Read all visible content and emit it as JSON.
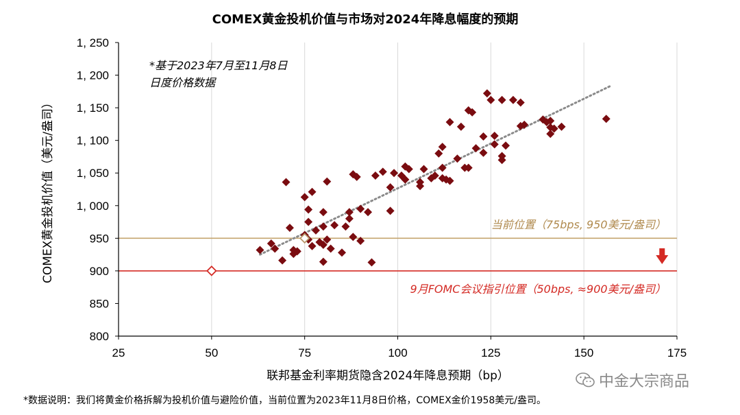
{
  "chart_data": {
    "type": "scatter",
    "title": "COMEX黄金投机价值与市场对2024年降息幅度的预期",
    "xlabel": "联邦基金利率期货隐含2024年降息预期（bp）",
    "ylabel": "COMEX黄金投机价值（美元/盎司）",
    "xlim": [
      25,
      175
    ],
    "ylim": [
      800,
      1250
    ],
    "x_ticks": [
      25,
      50,
      75,
      100,
      125,
      150,
      175
    ],
    "y_ticks": [
      800,
      850,
      900,
      950,
      1000,
      1050,
      1100,
      1150,
      1200,
      1250
    ],
    "y_tick_labels": [
      "800",
      "850",
      "900",
      "950",
      "1, 000",
      "1, 050",
      "1, 100",
      "1, 150",
      "1, 200",
      "1, 250"
    ],
    "grid": "vertical",
    "note_line1": "*基于2023年7月至11月8日",
    "note_line2": "日度价格数据",
    "series_color": "#7a0c10",
    "points": [
      [
        63,
        932
      ],
      [
        66,
        942
      ],
      [
        67,
        934
      ],
      [
        69,
        916
      ],
      [
        70,
        1036
      ],
      [
        71,
        966
      ],
      [
        72,
        926
      ],
      [
        72,
        932
      ],
      [
        73,
        930
      ],
      [
        75,
        1013
      ],
      [
        75,
        955
      ],
      [
        76,
        975
      ],
      [
        76,
        948
      ],
      [
        76,
        994
      ],
      [
        77,
        938
      ],
      [
        77,
        1021
      ],
      [
        78,
        962
      ],
      [
        79,
        944
      ],
      [
        80,
        990
      ],
      [
        80,
        968
      ],
      [
        80,
        940
      ],
      [
        80,
        914
      ],
      [
        81,
        948
      ],
      [
        81,
        1037
      ],
      [
        82,
        934
      ],
      [
        83,
        970
      ],
      [
        85,
        928
      ],
      [
        86,
        968
      ],
      [
        87,
        990
      ],
      [
        87,
        980
      ],
      [
        88,
        1048
      ],
      [
        88,
        952
      ],
      [
        89,
        1044
      ],
      [
        90,
        995
      ],
      [
        90,
        946
      ],
      [
        92,
        990
      ],
      [
        93,
        913
      ],
      [
        94,
        1046
      ],
      [
        96,
        1052
      ],
      [
        98,
        1028
      ],
      [
        98,
        992
      ],
      [
        99,
        1050
      ],
      [
        101,
        1046
      ],
      [
        102,
        1040
      ],
      [
        102,
        1060
      ],
      [
        103,
        1056
      ],
      [
        106,
        1030
      ],
      [
        106,
        1036
      ],
      [
        107,
        1056
      ],
      [
        109,
        1042
      ],
      [
        110,
        1046
      ],
      [
        111,
        1080
      ],
      [
        112,
        1090
      ],
      [
        112,
        1058
      ],
      [
        112,
        1042
      ],
      [
        113,
        1040
      ],
      [
        114,
        1128
      ],
      [
        114,
        1038
      ],
      [
        116,
        1072
      ],
      [
        117,
        1121
      ],
      [
        118,
        1058
      ],
      [
        119,
        1146
      ],
      [
        119,
        1058
      ],
      [
        120,
        1143
      ],
      [
        121,
        1088
      ],
      [
        123,
        1081
      ],
      [
        123,
        1106
      ],
      [
        124,
        1172
      ],
      [
        125,
        1162
      ],
      [
        126,
        1107
      ],
      [
        126,
        1094
      ],
      [
        128,
        1162
      ],
      [
        128,
        1076
      ],
      [
        128,
        1070
      ],
      [
        129,
        1092
      ],
      [
        131,
        1162
      ],
      [
        133,
        1158
      ],
      [
        133,
        1122
      ],
      [
        134,
        1124
      ],
      [
        139,
        1132
      ],
      [
        140,
        1128
      ],
      [
        141,
        1120
      ],
      [
        141,
        1130
      ],
      [
        141,
        1110
      ],
      [
        142,
        1118
      ],
      [
        144,
        1121
      ],
      [
        156,
        1133
      ]
    ],
    "trend_line": {
      "x": [
        63,
        157
      ],
      "y": [
        925,
        1183
      ],
      "style": "dotted",
      "color": "#8a8a8a"
    },
    "current_point": {
      "x": 75,
      "y": 950,
      "color": "#b8966a"
    },
    "guidance_point": {
      "x": 50,
      "y": 900,
      "color": "#d42a24"
    },
    "reference_lines": [
      {
        "y": 950,
        "color": "#c4a46e",
        "label": "当前位置（75bps, 950美元/盎司）"
      },
      {
        "y": 900,
        "color": "#d42a24",
        "label": "9月FOMC会议指引位置（50bps, ≈900美元/盎司）"
      }
    ],
    "arrow": {
      "x": 171,
      "direction": "down",
      "color": "#d42a24"
    }
  },
  "footnote": "*数据说明：我们将黄金价格拆解为投机价值与避险价值，当前位置为2023年11月8日价格，COMEX金价1958美元/盎司。",
  "watermark": "中金大宗商品"
}
